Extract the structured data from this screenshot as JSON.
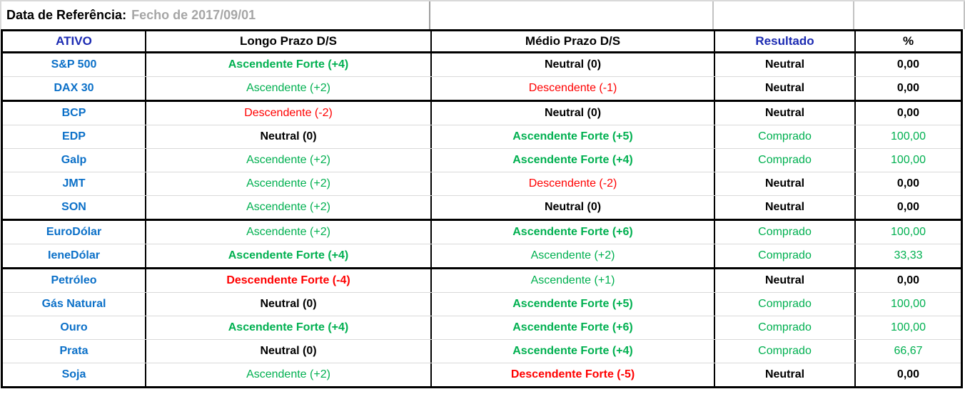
{
  "colors": {
    "header_blue": "#1b2ab2",
    "asset_blue": "#0b70c8",
    "positive_green": "#00b050",
    "negative_red": "#ff0000",
    "muted_gray_text": "#a6a6a6",
    "light_gridline": "#d9d9d9",
    "table_border": "#000000"
  },
  "reference": {
    "label": "Data de Referência:",
    "value": "Fecho de 2017/09/01"
  },
  "table": {
    "headers": {
      "ativo": "ATIVO",
      "longo": "Longo Prazo D/S",
      "medio": "Médio Prazo D/S",
      "resultado": "Resultado",
      "pct": "%"
    }
  },
  "rows": [
    {
      "ativo": "S&P 500",
      "longo": "Ascendente Forte (+4)",
      "medio": "Neutral (0)",
      "resultado": "Neutral",
      "pct": "0,00"
    },
    {
      "ativo": "DAX 30",
      "longo": "Ascendente (+2)",
      "medio": "Descendente (-1)",
      "resultado": "Neutral",
      "pct": "0,00"
    },
    {
      "ativo": "BCP",
      "longo": "Descendente (-2)",
      "medio": "Neutral (0)",
      "resultado": "Neutral",
      "pct": "0,00"
    },
    {
      "ativo": "EDP",
      "longo": "Neutral (0)",
      "medio": "Ascendente Forte (+5)",
      "resultado": "Comprado",
      "pct": "100,00"
    },
    {
      "ativo": "Galp",
      "longo": "Ascendente (+2)",
      "medio": "Ascendente Forte (+4)",
      "resultado": "Comprado",
      "pct": "100,00"
    },
    {
      "ativo": "JMT",
      "longo": "Ascendente (+2)",
      "medio": "Descendente (-2)",
      "resultado": "Neutral",
      "pct": "0,00"
    },
    {
      "ativo": "SON",
      "longo": "Ascendente (+2)",
      "medio": "Neutral (0)",
      "resultado": "Neutral",
      "pct": "0,00"
    },
    {
      "ativo": "EuroDólar",
      "longo": "Ascendente (+2)",
      "medio": "Ascendente Forte (+6)",
      "resultado": "Comprado",
      "pct": "100,00"
    },
    {
      "ativo": "IeneDólar",
      "longo": "Ascendente Forte (+4)",
      "medio": "Ascendente (+2)",
      "resultado": "Comprado",
      "pct": "33,33"
    },
    {
      "ativo": "Petróleo",
      "longo": "Descendente Forte (-4)",
      "medio": "Ascendente (+1)",
      "resultado": "Neutral",
      "pct": "0,00"
    },
    {
      "ativo": "Gás Natural",
      "longo": "Neutral (0)",
      "medio": "Ascendente Forte (+5)",
      "resultado": "Comprado",
      "pct": "100,00"
    },
    {
      "ativo": "Ouro",
      "longo": "Ascendente Forte (+4)",
      "medio": "Ascendente Forte (+6)",
      "resultado": "Comprado",
      "pct": "100,00"
    },
    {
      "ativo": "Prata",
      "longo": "Neutral (0)",
      "medio": "Ascendente Forte (+4)",
      "resultado": "Comprado",
      "pct": "66,67"
    },
    {
      "ativo": "Soja",
      "longo": "Ascendente (+2)",
      "medio": "Descendente Forte (-5)",
      "resultado": "Neutral",
      "pct": "0,00"
    }
  ]
}
